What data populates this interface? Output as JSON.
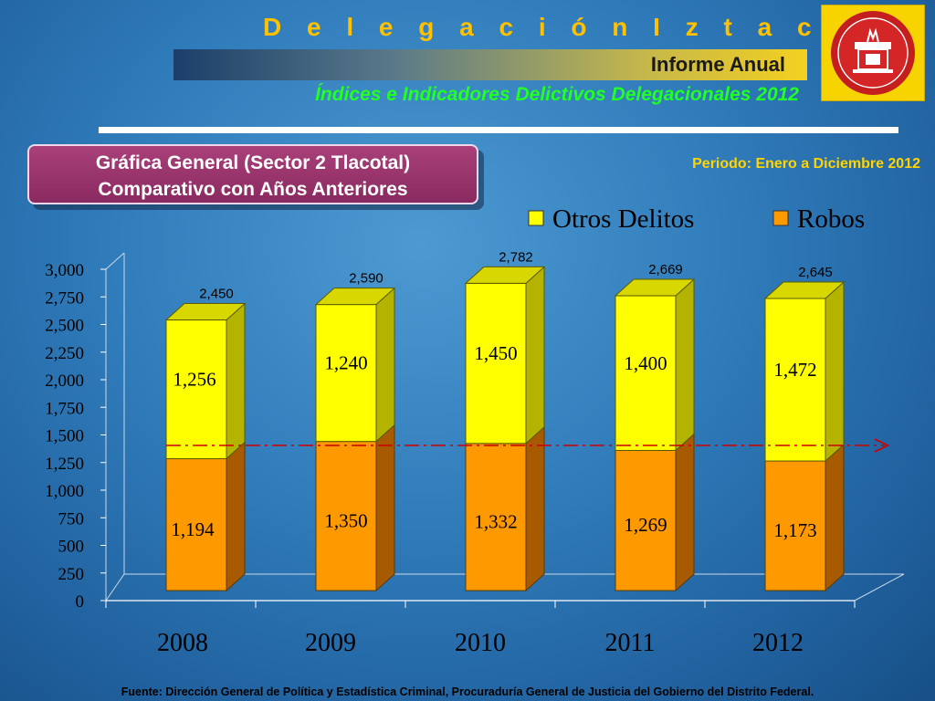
{
  "header": {
    "title": "D e l e g a c i ó n   I z t a c a l c o",
    "banner_label": "Informe Anual",
    "subtitle": "Índices e Indicadores Delictivos Delegacionales 2012"
  },
  "chart_box": {
    "line1": "Gráfica General (Sector 2 Tlacotal)",
    "line2": "Comparativo con Años Anteriores"
  },
  "period_label": "Periodo: Enero a Diciembre 2012",
  "footer": "Fuente: Dirección General de Política y Estadística Criminal, Procuraduría General de Justicia del Gobierno del Distrito Federal.",
  "colors": {
    "otros": "#ffff00",
    "robos": "#ff9900",
    "title": "#ffc000",
    "subtitle": "#22ff22",
    "reference_line": "#cc0000"
  },
  "chart_data": {
    "type": "bar",
    "stacked": true,
    "categories": [
      "2008",
      "2009",
      "2010",
      "2011",
      "2012"
    ],
    "series": [
      {
        "name": "Robos",
        "values": [
          1194,
          1350,
          1332,
          1269,
          1173
        ]
      },
      {
        "name": "Otros Delitos",
        "values": [
          1256,
          1240,
          1450,
          1400,
          1472
        ]
      }
    ],
    "totals": [
      "2,450",
      "2,590",
      "2,782",
      "2,669",
      "2,645"
    ],
    "ylim": [
      0,
      3000
    ],
    "yticks": [
      "0",
      "250",
      "500",
      "750",
      "1,000",
      "1,250",
      "1,500",
      "1,750",
      "2,000",
      "2,250",
      "2,500",
      "2,750",
      "3,000"
    ],
    "legend": {
      "position": "top-right",
      "entries": [
        "Otros Delitos",
        "Robos"
      ]
    },
    "reference_line": {
      "style": "dash-dot arrow"
    },
    "grid": false
  }
}
